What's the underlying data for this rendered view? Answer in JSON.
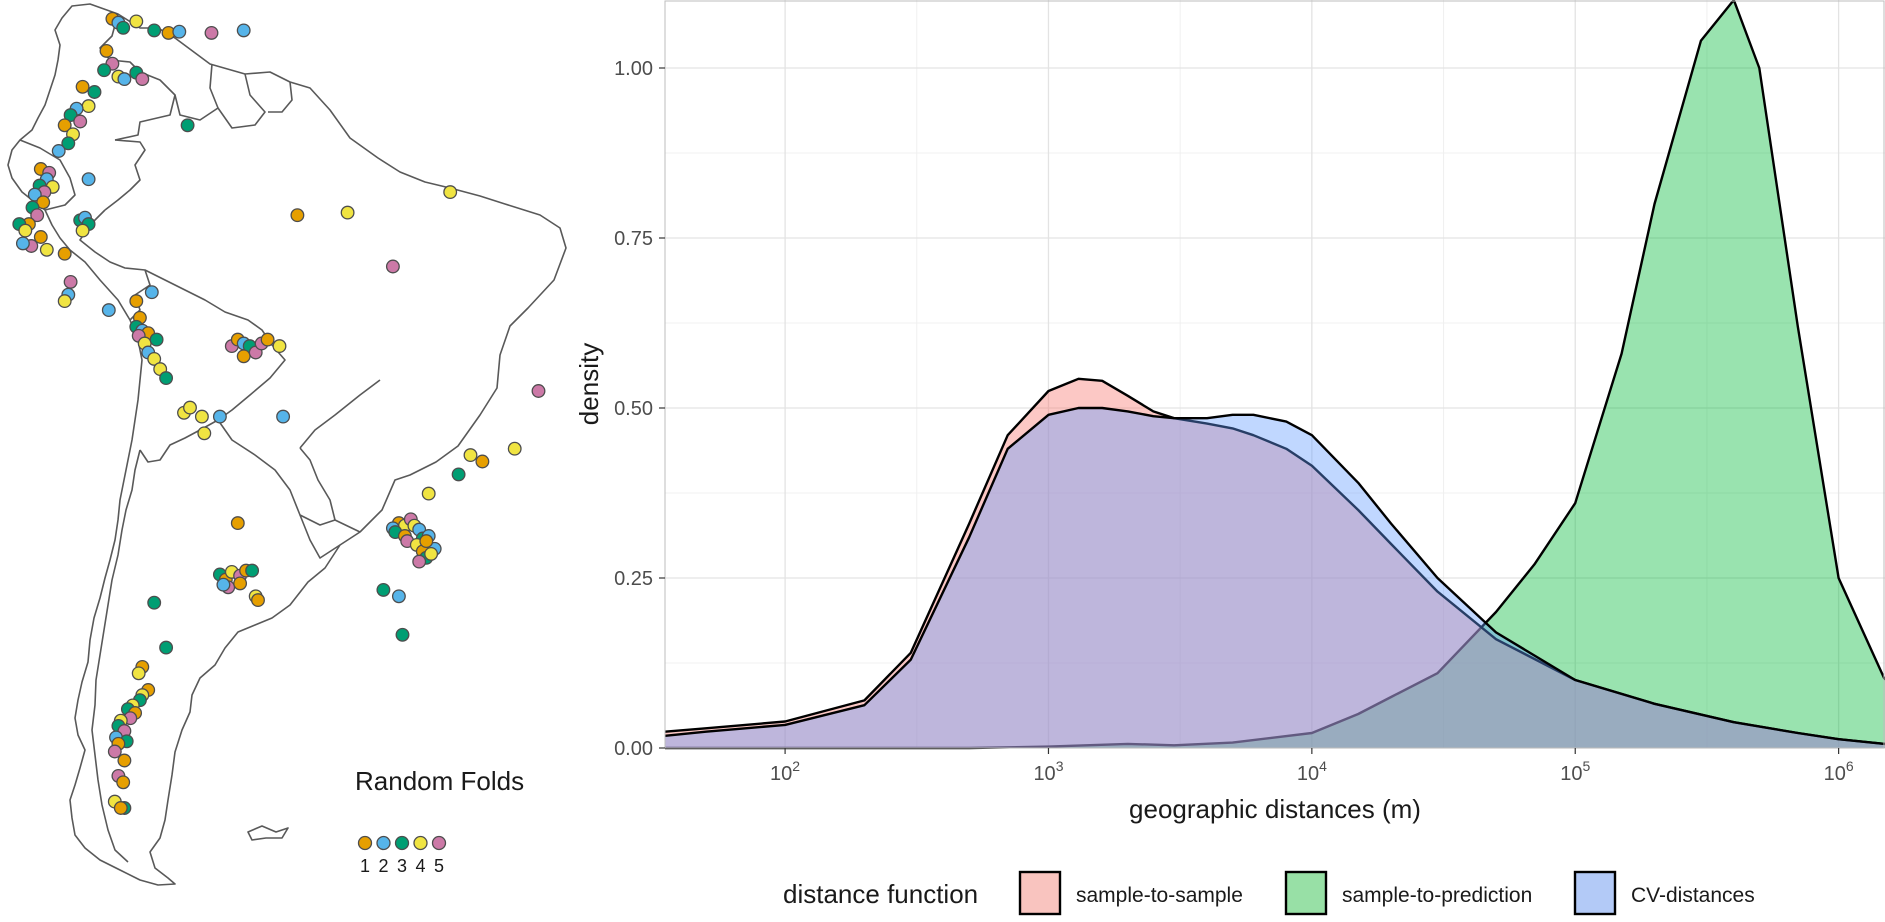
{
  "map": {
    "legend_title": "Random Folds",
    "fold_colors": [
      "#E69F00",
      "#56B4E9",
      "#009E73",
      "#F0E442",
      "#CC79A7"
    ],
    "fold_labels": [
      "1",
      "2",
      "3",
      "4",
      "5"
    ],
    "points": [
      [
        -72.5,
        11.5,
        1
      ],
      [
        -72.0,
        11.2,
        2
      ],
      [
        -71.6,
        10.8,
        3
      ],
      [
        -70.5,
        11.3,
        4
      ],
      [
        -69.0,
        10.6,
        3
      ],
      [
        -67.8,
        10.4,
        1
      ],
      [
        -66.9,
        10.5,
        2
      ],
      [
        -64.2,
        10.4,
        5
      ],
      [
        -61.5,
        10.6,
        2
      ],
      [
        -73.0,
        9.0,
        1
      ],
      [
        -72.5,
        8.0,
        5
      ],
      [
        -73.2,
        7.5,
        3
      ],
      [
        -72.0,
        7.0,
        4
      ],
      [
        -71.5,
        6.8,
        2
      ],
      [
        -70.5,
        7.3,
        3
      ],
      [
        -70.0,
        6.8,
        5
      ],
      [
        -74.0,
        5.8,
        3
      ],
      [
        -75.0,
        6.2,
        1
      ],
      [
        -74.5,
        4.7,
        4
      ],
      [
        -75.5,
        4.5,
        2
      ],
      [
        -76.0,
        4.0,
        3
      ],
      [
        -75.2,
        3.5,
        5
      ],
      [
        -76.5,
        3.2,
        1
      ],
      [
        -75.8,
        2.5,
        4
      ],
      [
        -76.2,
        1.8,
        3
      ],
      [
        -77.0,
        1.2,
        2
      ],
      [
        -78.5,
        -0.2,
        1
      ],
      [
        -77.8,
        -0.5,
        5
      ],
      [
        -78.0,
        -1.0,
        2
      ],
      [
        -78.6,
        -1.5,
        3
      ],
      [
        -77.5,
        -1.6,
        4
      ],
      [
        -78.2,
        -2.0,
        5
      ],
      [
        -79.0,
        -2.2,
        2
      ],
      [
        -78.3,
        -2.8,
        1
      ],
      [
        -79.2,
        -3.2,
        3
      ],
      [
        -78.8,
        -3.8,
        5
      ],
      [
        -79.5,
        -4.5,
        1
      ],
      [
        -80.3,
        -4.5,
        3
      ],
      [
        -79.8,
        -5.0,
        4
      ],
      [
        -78.5,
        -5.5,
        1
      ],
      [
        -79.3,
        -6.2,
        5
      ],
      [
        -80.0,
        -6.0,
        2
      ],
      [
        -78.0,
        -6.5,
        4
      ],
      [
        -76.5,
        -6.8,
        1
      ],
      [
        -74.5,
        -1.0,
        2
      ],
      [
        -75.2,
        -4.2,
        3
      ],
      [
        -74.8,
        -4.0,
        2
      ],
      [
        -74.5,
        -4.5,
        3
      ],
      [
        -75.0,
        -5.0,
        4
      ],
      [
        -76.0,
        -9.0,
        5
      ],
      [
        -76.2,
        -10.0,
        2
      ],
      [
        -76.5,
        -10.5,
        4
      ],
      [
        -72.8,
        -11.2,
        2
      ],
      [
        -69.2,
        -9.8,
        2
      ],
      [
        -70.5,
        -10.5,
        1
      ],
      [
        -70.2,
        -11.8,
        1
      ],
      [
        -70.5,
        -12.5,
        3
      ],
      [
        -70.0,
        -12.8,
        2
      ],
      [
        -69.5,
        -13.0,
        1
      ],
      [
        -70.3,
        -13.2,
        5
      ],
      [
        -69.8,
        -13.8,
        4
      ],
      [
        -68.8,
        -13.5,
        3
      ],
      [
        -69.5,
        -14.5,
        2
      ],
      [
        -69.0,
        -15.0,
        4
      ],
      [
        -68.5,
        -15.8,
        4
      ],
      [
        -68.0,
        -16.5,
        3
      ],
      [
        -66.5,
        -19.2,
        4
      ],
      [
        -66.0,
        -18.8,
        4
      ],
      [
        -65.0,
        -19.5,
        4
      ],
      [
        -64.8,
        -20.8,
        4
      ],
      [
        -63.5,
        -19.5,
        2
      ],
      [
        -62.5,
        -14.0,
        5
      ],
      [
        -62.0,
        -13.5,
        1
      ],
      [
        -61.5,
        -13.8,
        2
      ],
      [
        -61.0,
        -14.0,
        3
      ],
      [
        -61.5,
        -14.8,
        1
      ],
      [
        -60.5,
        -14.5,
        5
      ],
      [
        -60.0,
        -13.8,
        5
      ],
      [
        -59.5,
        -13.5,
        1
      ],
      [
        -58.5,
        -14.0,
        4
      ],
      [
        -58.2,
        -19.5,
        2
      ],
      [
        -57.0,
        -3.8,
        1
      ],
      [
        -52.8,
        -3.6,
        4
      ],
      [
        -44.2,
        -2.0,
        4
      ],
      [
        -49.0,
        -7.8,
        5
      ],
      [
        -66.2,
        3.2,
        3
      ],
      [
        -36.8,
        -17.5,
        5
      ],
      [
        -42.5,
        -22.5,
        4
      ],
      [
        -41.5,
        -23.0,
        1
      ],
      [
        -38.8,
        -22.0,
        4
      ],
      [
        -43.5,
        -24.0,
        3
      ],
      [
        -46.0,
        -25.5,
        4
      ],
      [
        -48.5,
        -27.8,
        1
      ],
      [
        -48.0,
        -28.0,
        4
      ],
      [
        -49.0,
        -28.2,
        2
      ],
      [
        -47.5,
        -27.5,
        5
      ],
      [
        -48.8,
        -28.5,
        3
      ],
      [
        -48.0,
        -28.8,
        1
      ],
      [
        -47.2,
        -28.0,
        4
      ],
      [
        -46.8,
        -28.3,
        2
      ],
      [
        -47.8,
        -29.2,
        5
      ],
      [
        -46.5,
        -29.0,
        3
      ],
      [
        -46.0,
        -28.8,
        2
      ],
      [
        -47.0,
        -29.5,
        4
      ],
      [
        -46.5,
        -30.0,
        1
      ],
      [
        -46.2,
        -30.5,
        3
      ],
      [
        -46.8,
        -30.8,
        5
      ],
      [
        -45.5,
        -29.8,
        2
      ],
      [
        -45.8,
        -30.2,
        4
      ],
      [
        -46.2,
        -29.2,
        1
      ],
      [
        -49.8,
        -33.0,
        3
      ],
      [
        -48.5,
        -33.5,
        2
      ],
      [
        -48.2,
        -36.5,
        3
      ],
      [
        -62.0,
        -27.8,
        1
      ],
      [
        -63.5,
        -31.8,
        3
      ],
      [
        -63.0,
        -32.2,
        1
      ],
      [
        -62.5,
        -31.6,
        4
      ],
      [
        -61.8,
        -31.9,
        5
      ],
      [
        -61.3,
        -31.5,
        1
      ],
      [
        -60.8,
        -31.5,
        3
      ],
      [
        -62.8,
        -32.8,
        5
      ],
      [
        -63.2,
        -32.6,
        2
      ],
      [
        -61.8,
        -32.5,
        1
      ],
      [
        -60.5,
        -33.5,
        4
      ],
      [
        -60.3,
        -33.8,
        1
      ],
      [
        -69.0,
        -34.0,
        3
      ],
      [
        -68.0,
        -37.5,
        3
      ],
      [
        -70.0,
        -39.0,
        1
      ],
      [
        -70.3,
        -39.5,
        4
      ],
      [
        -69.5,
        -40.8,
        1
      ],
      [
        -70.0,
        -41.2,
        4
      ],
      [
        -70.2,
        -41.6,
        3
      ],
      [
        -70.8,
        -42.0,
        4
      ],
      [
        -71.2,
        -42.3,
        3
      ],
      [
        -70.6,
        -42.6,
        1
      ],
      [
        -71.0,
        -43.0,
        5
      ],
      [
        -71.8,
        -43.2,
        4
      ],
      [
        -72.0,
        -43.6,
        3
      ],
      [
        -71.5,
        -44.0,
        5
      ],
      [
        -72.2,
        -44.5,
        2
      ],
      [
        -71.3,
        -44.8,
        3
      ],
      [
        -72.0,
        -45.0,
        1
      ],
      [
        -72.3,
        -45.6,
        5
      ],
      [
        -71.5,
        -46.3,
        1
      ],
      [
        -72.0,
        -47.5,
        5
      ],
      [
        -71.6,
        -48.0,
        1
      ],
      [
        -72.3,
        -49.5,
        4
      ],
      [
        -71.5,
        -50.0,
        3
      ],
      [
        -71.8,
        -50.0,
        1
      ]
    ]
  },
  "chart_data": {
    "type": "area",
    "xlabel": "geographic distances (m)",
    "ylabel": "density",
    "x_scale": "log10",
    "xlim": [
      35,
      1500000
    ],
    "ylim": [
      0,
      1.1
    ],
    "x_ticks": [
      100,
      1000,
      10000,
      100000,
      1000000
    ],
    "x_tick_labels": [
      "2",
      "3",
      "4",
      "5",
      "6"
    ],
    "x_tick_base": "10",
    "y_ticks": [
      0,
      0.25,
      0.5,
      0.75,
      1.0
    ],
    "y_tick_labels": [
      "0.00",
      "0.25",
      "0.50",
      "0.75",
      "1.00"
    ],
    "grid": true,
    "legend_position": "bottom",
    "legend_title": "distance function",
    "series": [
      {
        "name": "sample-to-sample",
        "color": "#F8766D",
        "fill": "#F9C4BF",
        "x": [
          35,
          50,
          100,
          200,
          300,
          500,
          700,
          1000,
          1300,
          1600,
          2000,
          2500,
          3000,
          4000,
          5000,
          6000,
          8000,
          10000,
          15000,
          20000,
          30000,
          50000,
          100000,
          200000,
          400000,
          700000,
          1000000,
          1500000
        ],
        "y": [
          0.024,
          0.029,
          0.039,
          0.07,
          0.14,
          0.33,
          0.46,
          0.525,
          0.543,
          0.54,
          0.518,
          0.495,
          0.485,
          0.477,
          0.47,
          0.46,
          0.44,
          0.415,
          0.35,
          0.3,
          0.23,
          0.16,
          0.1,
          0.065,
          0.038,
          0.022,
          0.013,
          0.006
        ]
      },
      {
        "name": "sample-to-prediction",
        "color": "#00BA38",
        "fill": "#98E0A6",
        "x": [
          35,
          500,
          1000,
          2000,
          3000,
          5000,
          10000,
          15000,
          20000,
          30000,
          50000,
          70000,
          100000,
          150000,
          200000,
          300000,
          400000,
          500000,
          700000,
          1000000,
          1500000
        ],
        "y": [
          0,
          0,
          0.002,
          0.006,
          0.004,
          0.008,
          0.022,
          0.05,
          0.075,
          0.11,
          0.2,
          0.27,
          0.36,
          0.58,
          0.8,
          1.04,
          1.1,
          1.0,
          0.62,
          0.25,
          0.1
        ]
      },
      {
        "name": "CV-distances",
        "color": "#619CFF",
        "fill": "#B3CAF7",
        "x": [
          35,
          50,
          100,
          200,
          300,
          500,
          700,
          1000,
          1300,
          1600,
          2000,
          2500,
          3000,
          4000,
          5000,
          6000,
          8000,
          10000,
          15000,
          20000,
          30000,
          50000,
          100000,
          200000,
          400000,
          700000,
          1000000,
          1500000
        ],
        "y": [
          0.018,
          0.024,
          0.034,
          0.063,
          0.13,
          0.31,
          0.44,
          0.49,
          0.5,
          0.5,
          0.495,
          0.488,
          0.485,
          0.485,
          0.49,
          0.49,
          0.48,
          0.46,
          0.39,
          0.33,
          0.25,
          0.17,
          0.1,
          0.065,
          0.038,
          0.022,
          0.013,
          0.006
        ]
      }
    ]
  }
}
